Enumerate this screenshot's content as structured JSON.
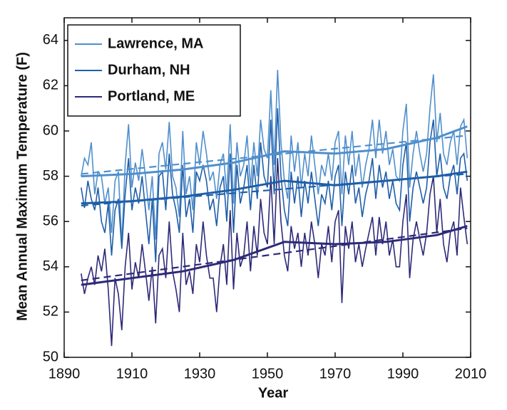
{
  "chart_data": {
    "type": "line",
    "xlabel": "Year",
    "ylabel": "Mean Annual Maximum Temperature (F)",
    "xlim": [
      1890,
      2010
    ],
    "xticks": [
      1890,
      1910,
      1930,
      1950,
      1970,
      1990,
      2010
    ],
    "ylim": [
      50,
      65
    ],
    "yticks": [
      50,
      52,
      54,
      56,
      58,
      60,
      62,
      64
    ],
    "grid": false,
    "legend": "upper left",
    "x": [
      1895,
      1896,
      1897,
      1898,
      1899,
      1900,
      1901,
      1902,
      1903,
      1904,
      1905,
      1906,
      1907,
      1908,
      1909,
      1910,
      1911,
      1912,
      1913,
      1914,
      1915,
      1916,
      1917,
      1918,
      1919,
      1920,
      1921,
      1922,
      1923,
      1924,
      1925,
      1926,
      1927,
      1928,
      1929,
      1930,
      1931,
      1932,
      1933,
      1934,
      1935,
      1936,
      1937,
      1938,
      1939,
      1940,
      1941,
      1942,
      1943,
      1944,
      1945,
      1946,
      1947,
      1948,
      1949,
      1950,
      1951,
      1952,
      1953,
      1954,
      1955,
      1956,
      1957,
      1958,
      1959,
      1960,
      1961,
      1962,
      1963,
      1964,
      1965,
      1966,
      1967,
      1968,
      1969,
      1970,
      1971,
      1972,
      1973,
      1974,
      1975,
      1976,
      1977,
      1978,
      1979,
      1980,
      1981,
      1982,
      1983,
      1984,
      1985,
      1986,
      1987,
      1988,
      1989,
      1990,
      1991,
      1992,
      1993,
      1994,
      1995,
      1996,
      1997,
      1998,
      1999,
      2000,
      2001,
      2002,
      2003,
      2004,
      2005,
      2006,
      2007,
      2008,
      2009
    ],
    "smooth_x": [
      1895,
      1910,
      1925,
      1940,
      1955,
      1970,
      1985,
      2000,
      2009
    ],
    "fit_x": [
      1895,
      2009
    ],
    "series": [
      {
        "name": "Lawrence, MA",
        "color": "#4f8fcc",
        "values": [
          58.0,
          58.8,
          58.5,
          59.5,
          57.2,
          58.2,
          58.0,
          56.8,
          57.5,
          55.5,
          57.8,
          58.2,
          55.0,
          58.5,
          60.3,
          57.5,
          58.6,
          57.8,
          59.2,
          58.0,
          56.5,
          58.0,
          55.2,
          59.0,
          59.5,
          58.3,
          60.4,
          58.0,
          57.5,
          56.2,
          60.0,
          57.2,
          58.0,
          56.5,
          59.5,
          58.5,
          60.0,
          59.0,
          57.8,
          58.2,
          57.0,
          58.5,
          59.0,
          57.2,
          60.3,
          56.8,
          59.5,
          58.0,
          58.5,
          59.8,
          57.5,
          59.5,
          58.0,
          60.5,
          59.2,
          58.8,
          61.8,
          58.5,
          62.7,
          59.5,
          57.8,
          57.0,
          59.8,
          58.2,
          59.5,
          57.5,
          59.0,
          58.0,
          59.8,
          58.5,
          57.2,
          58.5,
          58.0,
          59.0,
          57.8,
          59.5,
          60.0,
          57.2,
          59.8,
          58.5,
          60.0,
          58.0,
          59.0,
          57.5,
          58.5,
          59.2,
          60.5,
          58.8,
          60.5,
          59.0,
          60.0,
          58.5,
          59.2,
          58.0,
          57.8,
          60.0,
          61.2,
          57.5,
          59.0,
          60.0,
          59.0,
          58.2,
          59.0,
          61.0,
          62.5,
          59.5,
          60.8,
          59.0,
          58.5,
          59.5,
          60.0,
          58.5,
          60.2,
          60.5,
          58.8
        ],
        "smooth": [
          58.0,
          58.1,
          58.3,
          58.6,
          59.1,
          59.0,
          59.2,
          59.7,
          60.2
        ],
        "fit": [
          58.1,
          59.8
        ]
      },
      {
        "name": "Durham, NH",
        "color": "#1f5ea8",
        "values": [
          57.5,
          56.6,
          57.8,
          57.0,
          56.5,
          57.5,
          56.0,
          55.5,
          56.8,
          54.5,
          56.5,
          57.0,
          54.8,
          57.2,
          58.8,
          56.5,
          57.5,
          56.8,
          58.0,
          56.5,
          55.0,
          57.0,
          54.2,
          58.0,
          58.2,
          56.5,
          59.0,
          57.2,
          56.5,
          55.5,
          58.5,
          56.2,
          57.0,
          55.5,
          58.2,
          57.8,
          58.5,
          57.8,
          56.5,
          57.0,
          55.8,
          57.5,
          58.0,
          56.0,
          59.0,
          55.5,
          58.5,
          56.8,
          57.5,
          58.5,
          56.5,
          58.5,
          57.0,
          59.5,
          58.0,
          57.5,
          60.5,
          57.2,
          61.0,
          58.0,
          56.5,
          55.8,
          58.2,
          56.8,
          58.0,
          56.2,
          57.8,
          56.8,
          58.2,
          57.0,
          55.8,
          57.2,
          56.8,
          57.8,
          56.5,
          58.0,
          58.5,
          55.8,
          58.2,
          57.2,
          58.5,
          56.8,
          57.5,
          56.2,
          57.2,
          57.8,
          58.8,
          57.0,
          58.5,
          57.5,
          58.2,
          57.0,
          57.8,
          56.8,
          56.5,
          58.5,
          59.5,
          56.0,
          57.5,
          58.2,
          57.5,
          56.8,
          57.5,
          59.5,
          60.5,
          58.0,
          59.0,
          57.5,
          57.0,
          58.0,
          58.5,
          57.2,
          58.8,
          59.0,
          57.8
        ],
        "smooth": [
          56.8,
          56.9,
          57.1,
          57.4,
          57.8,
          57.6,
          57.8,
          58.0,
          58.2
        ],
        "fit": [
          56.7,
          58.1
        ]
      },
      {
        "name": "Portland, ME",
        "color": "#2d2a78",
        "values": [
          53.7,
          52.8,
          53.5,
          54.0,
          53.2,
          54.5,
          53.8,
          54.8,
          53.0,
          50.5,
          53.5,
          52.8,
          51.2,
          54.0,
          55.5,
          53.0,
          54.2,
          53.5,
          55.0,
          53.8,
          52.5,
          54.0,
          51.5,
          54.5,
          54.8,
          53.5,
          56.0,
          53.8,
          53.0,
          52.0,
          55.5,
          53.2,
          53.8,
          52.8,
          55.0,
          54.2,
          56.0,
          54.5,
          53.5,
          53.5,
          52.0,
          54.0,
          55.0,
          53.2,
          56.5,
          53.0,
          55.5,
          54.0,
          54.5,
          56.0,
          53.8,
          55.8,
          54.5,
          57.0,
          55.5,
          55.0,
          58.0,
          55.0,
          58.8,
          56.0,
          54.5,
          53.8,
          55.8,
          54.8,
          55.5,
          54.0,
          55.5,
          54.5,
          56.0,
          55.0,
          53.5,
          55.0,
          54.5,
          55.8,
          54.2,
          56.0,
          56.5,
          52.4,
          55.8,
          54.8,
          56.0,
          54.2,
          55.0,
          54.0,
          54.8,
          55.5,
          56.2,
          54.5,
          56.2,
          55.0,
          56.0,
          54.5,
          55.2,
          54.0,
          54.0,
          56.0,
          57.2,
          53.5,
          55.2,
          56.0,
          55.2,
          54.5,
          55.5,
          57.2,
          58.0,
          55.5,
          57.0,
          55.0,
          54.2,
          55.5,
          56.0,
          54.5,
          57.5,
          56.2,
          55.0
        ],
        "smooth": [
          53.2,
          53.5,
          53.8,
          54.3,
          55.1,
          55.0,
          55.1,
          55.4,
          55.8
        ],
        "fit": [
          53.4,
          55.7
        ]
      }
    ]
  }
}
